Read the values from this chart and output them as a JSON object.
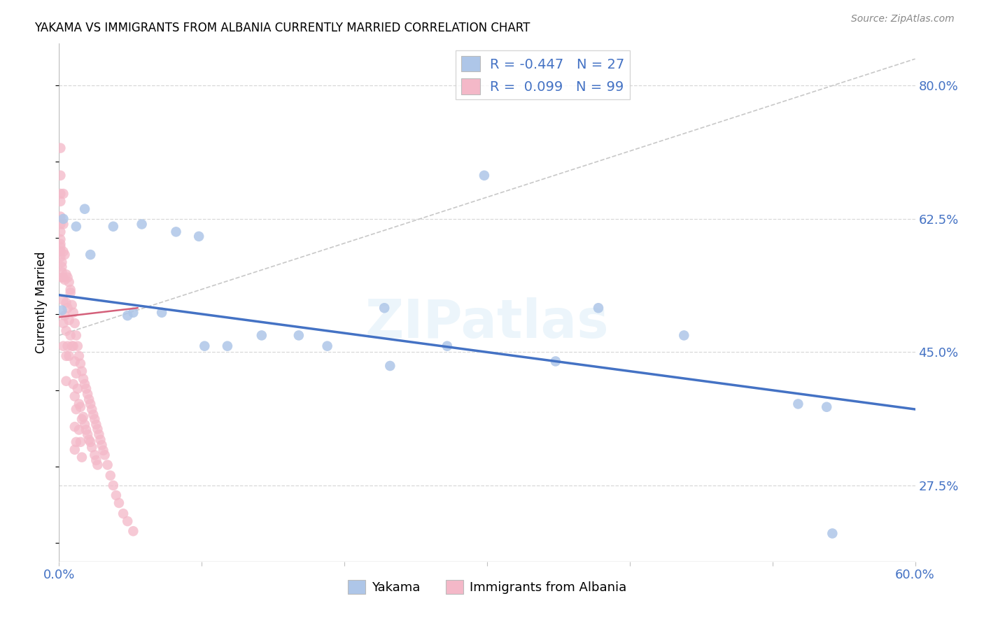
{
  "title": "YAKAMA VS IMMIGRANTS FROM ALBANIA CURRENTLY MARRIED CORRELATION CHART",
  "source": "Source: ZipAtlas.com",
  "ylabel_label": "Currently Married",
  "legend_label_blue": "Yakama",
  "legend_label_pink": "Immigrants from Albania",
  "legend_blue_label": "R = -0.447   N = 27",
  "legend_pink_label": "R =  0.099   N = 99",
  "blue_color": "#aec6e8",
  "blue_line_color": "#4472C4",
  "pink_color": "#f4b8c8",
  "pink_line_color": "#d4607a",
  "dashed_line_color": "#c8c8c8",
  "watermark": "ZIPatlas",
  "blue_scatter_x": [
    0.002,
    0.003,
    0.012,
    0.018,
    0.022,
    0.038,
    0.048,
    0.052,
    0.058,
    0.072,
    0.082,
    0.098,
    0.102,
    0.118,
    0.142,
    0.168,
    0.188,
    0.228,
    0.232,
    0.272,
    0.298,
    0.348,
    0.378,
    0.438,
    0.518,
    0.538,
    0.542
  ],
  "blue_scatter_y": [
    0.505,
    0.625,
    0.615,
    0.638,
    0.578,
    0.615,
    0.498,
    0.502,
    0.618,
    0.502,
    0.608,
    0.602,
    0.458,
    0.458,
    0.472,
    0.472,
    0.458,
    0.508,
    0.432,
    0.458,
    0.682,
    0.438,
    0.508,
    0.472,
    0.382,
    0.378,
    0.212
  ],
  "pink_scatter_x": [
    0.001,
    0.001,
    0.001,
    0.001,
    0.001,
    0.001,
    0.001,
    0.001,
    0.001,
    0.001,
    0.001,
    0.001,
    0.002,
    0.002,
    0.002,
    0.002,
    0.003,
    0.003,
    0.003,
    0.003,
    0.003,
    0.003,
    0.003,
    0.004,
    0.004,
    0.004,
    0.005,
    0.005,
    0.005,
    0.005,
    0.005,
    0.006,
    0.006,
    0.006,
    0.007,
    0.007,
    0.007,
    0.008,
    0.008,
    0.008,
    0.009,
    0.009,
    0.01,
    0.01,
    0.01,
    0.011,
    0.011,
    0.011,
    0.011,
    0.011,
    0.012,
    0.012,
    0.012,
    0.012,
    0.013,
    0.013,
    0.014,
    0.014,
    0.014,
    0.015,
    0.015,
    0.015,
    0.016,
    0.016,
    0.016,
    0.017,
    0.017,
    0.018,
    0.018,
    0.019,
    0.019,
    0.02,
    0.02,
    0.021,
    0.021,
    0.022,
    0.022,
    0.023,
    0.023,
    0.024,
    0.025,
    0.025,
    0.026,
    0.026,
    0.027,
    0.027,
    0.028,
    0.029,
    0.03,
    0.031,
    0.032,
    0.034,
    0.036,
    0.038,
    0.04,
    0.042,
    0.045,
    0.048,
    0.052
  ],
  "pink_scatter_y": [
    0.718,
    0.682,
    0.658,
    0.648,
    0.628,
    0.618,
    0.608,
    0.598,
    0.592,
    0.588,
    0.582,
    0.575,
    0.568,
    0.562,
    0.555,
    0.548,
    0.658,
    0.618,
    0.582,
    0.548,
    0.518,
    0.488,
    0.458,
    0.578,
    0.545,
    0.498,
    0.552,
    0.515,
    0.478,
    0.445,
    0.412,
    0.548,
    0.508,
    0.458,
    0.542,
    0.492,
    0.445,
    0.532,
    0.472,
    0.528,
    0.512,
    0.458,
    0.502,
    0.458,
    0.408,
    0.488,
    0.438,
    0.392,
    0.352,
    0.322,
    0.472,
    0.422,
    0.375,
    0.332,
    0.458,
    0.402,
    0.445,
    0.382,
    0.348,
    0.435,
    0.378,
    0.332,
    0.425,
    0.362,
    0.312,
    0.415,
    0.365,
    0.408,
    0.355,
    0.402,
    0.348,
    0.395,
    0.342,
    0.388,
    0.335,
    0.382,
    0.332,
    0.375,
    0.325,
    0.368,
    0.362,
    0.315,
    0.355,
    0.308,
    0.349,
    0.302,
    0.342,
    0.335,
    0.328,
    0.321,
    0.315,
    0.302,
    0.288,
    0.275,
    0.262,
    0.252,
    0.238,
    0.228,
    0.215
  ],
  "xlim": [
    0.0,
    0.6
  ],
  "ylim": [
    0.175,
    0.855
  ],
  "yticks": [
    0.275,
    0.45,
    0.625,
    0.8
  ],
  "ytick_labels": [
    "27.5%",
    "45.0%",
    "62.5%",
    "80.0%"
  ],
  "xticks": [
    0.0,
    0.1,
    0.2,
    0.3,
    0.4,
    0.5,
    0.6
  ],
  "xtick_labels": [
    "0.0%",
    "",
    "",
    "",
    "",
    "",
    "60.0%"
  ],
  "blue_trendline": [
    [
      0.0,
      0.6
    ],
    [
      0.525,
      0.375
    ]
  ],
  "pink_trendline": [
    [
      0.0,
      0.055
    ],
    [
      0.496,
      0.508
    ]
  ],
  "dashed_trendline": [
    [
      0.0,
      0.6
    ],
    [
      0.472,
      0.835
    ]
  ],
  "grid_color": "#d8d8d8",
  "axis_color": "#c0c0c0"
}
